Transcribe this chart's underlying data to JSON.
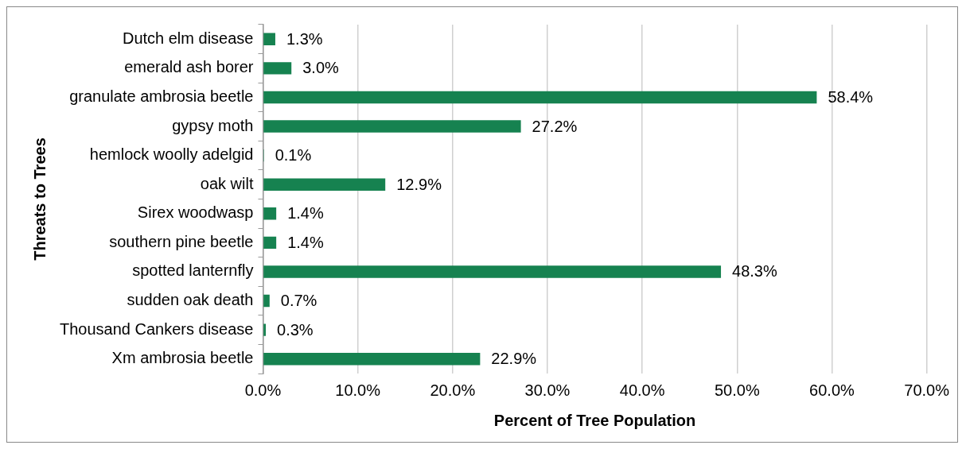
{
  "chart_data": {
    "type": "bar",
    "orientation": "horizontal",
    "xlabel": "Percent of Tree Population",
    "ylabel": "Threats to Trees",
    "categories": [
      "Dutch elm disease",
      "emerald ash borer",
      "granulate ambrosia beetle",
      "gypsy moth",
      "hemlock woolly adelgid",
      "oak wilt",
      "Sirex woodwasp",
      "southern pine beetle",
      "spotted lanternfly",
      "sudden oak death",
      "Thousand Cankers disease",
      "Xm ambrosia beetle"
    ],
    "values": [
      1.3,
      3.0,
      58.4,
      27.2,
      0.1,
      12.9,
      1.4,
      1.4,
      48.3,
      0.7,
      0.3,
      22.9
    ],
    "value_labels": [
      "1.3%",
      "3.0%",
      "58.4%",
      "27.2%",
      "0.1%",
      "12.9%",
      "1.4%",
      "1.4%",
      "48.3%",
      "0.7%",
      "0.3%",
      "22.9%"
    ],
    "color": "#168250",
    "xlim": [
      0,
      70
    ],
    "xticks": [
      {
        "value": 0,
        "label": "0.0%"
      },
      {
        "value": 10,
        "label": "10.0%"
      },
      {
        "value": 20,
        "label": "20.0%"
      },
      {
        "value": 30,
        "label": "30.0%"
      },
      {
        "value": 40,
        "label": "40.0%"
      },
      {
        "value": 50,
        "label": "50.0%"
      },
      {
        "value": 60,
        "label": "60.0%"
      },
      {
        "value": 70,
        "label": "70.0%"
      }
    ],
    "grid": "x",
    "legend": false
  }
}
